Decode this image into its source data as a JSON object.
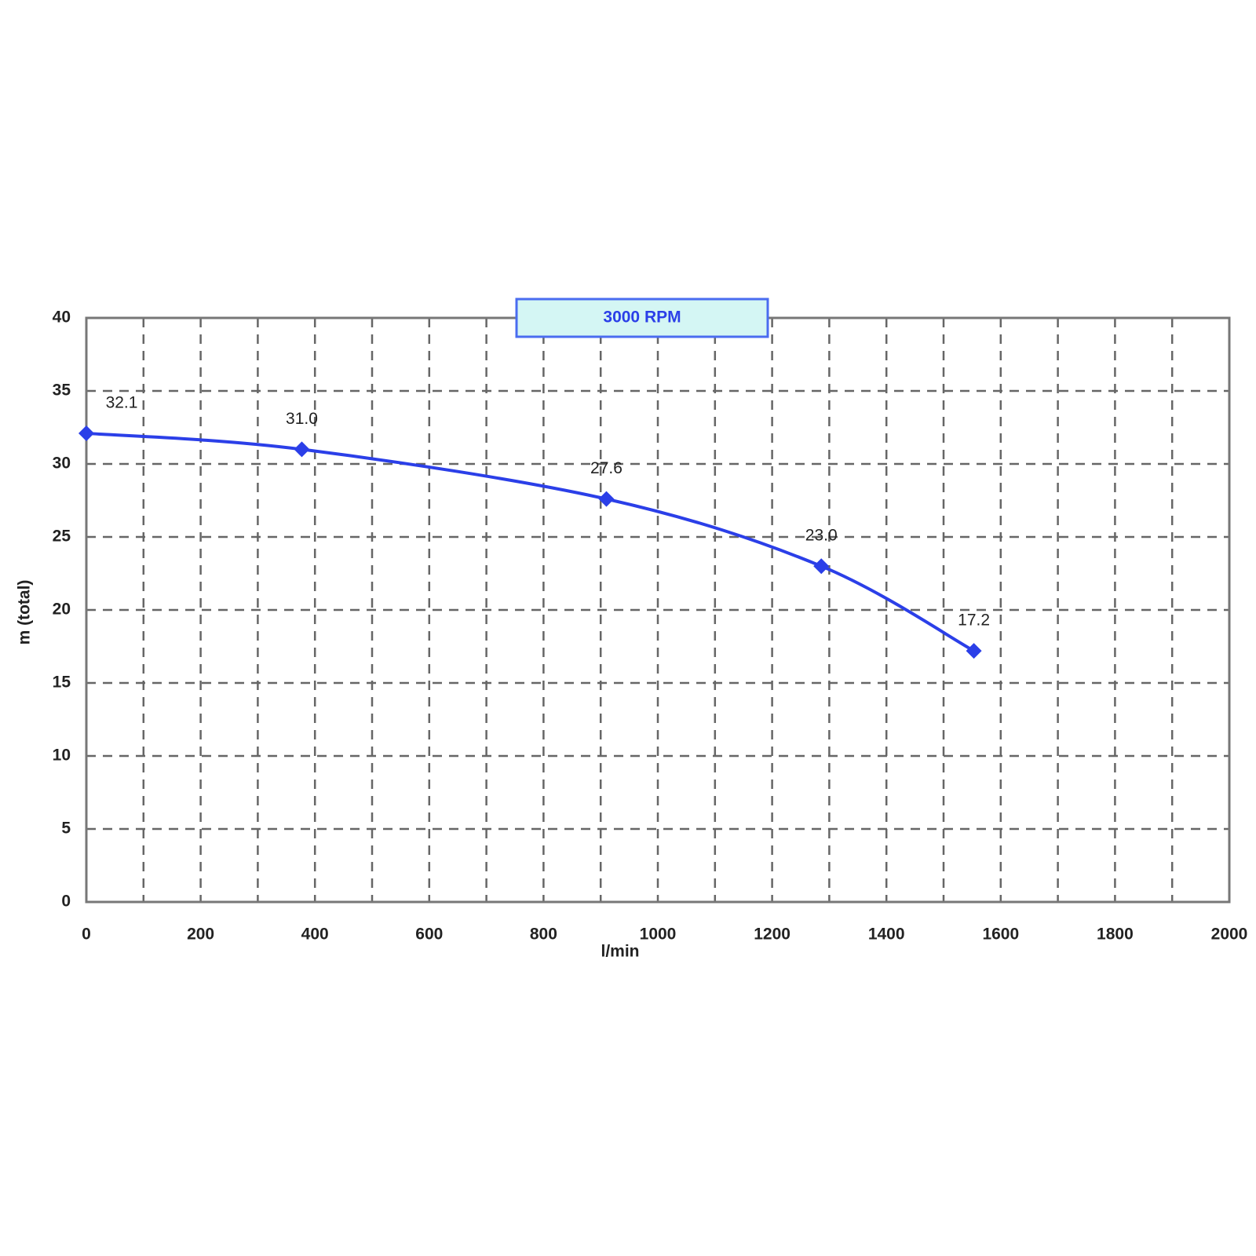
{
  "chart_data": {
    "type": "line",
    "title": "3000 RPM",
    "x_label": "l/min",
    "y_label": "m (total)",
    "x": [
      0,
      377,
      910,
      1286,
      1553
    ],
    "series": [
      {
        "color": "#2b3fe8",
        "values": [
          32.1,
          31,
          27.6,
          23,
          17.2
        ],
        "value_labels": [
          "32.1",
          "31.0",
          "27.6",
          "23.0",
          "17.2"
        ]
      }
    ],
    "xlim": [
      0,
      2000
    ],
    "xticks": [
      0,
      200,
      400,
      600,
      800,
      1000,
      1200,
      1400,
      1600,
      1800,
      2000
    ],
    "ylim": [
      0,
      40
    ],
    "yticks": [
      0,
      5,
      10,
      15,
      20,
      25,
      30,
      35,
      40
    ],
    "grid": true
  }
}
